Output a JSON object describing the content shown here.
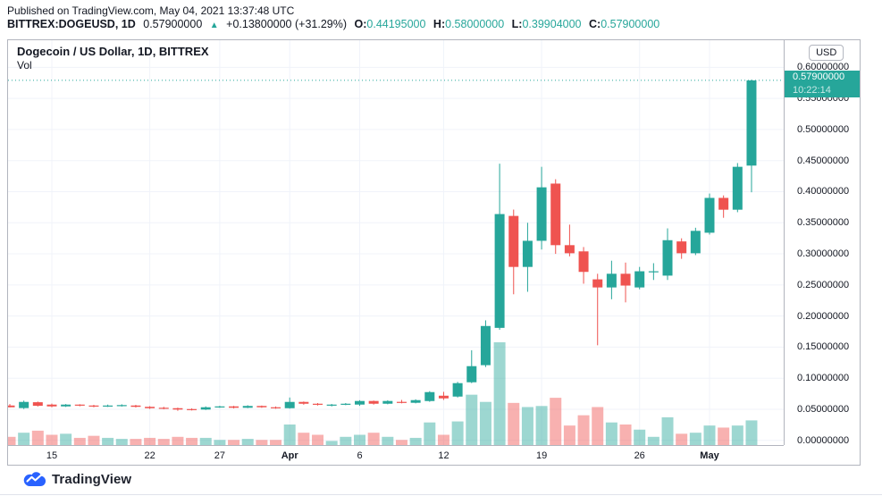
{
  "header": {
    "published_line": "Published on TradingView.com, May 04, 2021 13:37:48 UTC",
    "symbol": "BITTREX:DOGEUSD, 1D",
    "last_price": "0.57900000",
    "change_icon": "▲",
    "change": "+0.13800000 (+31.29%)",
    "ohlc": {
      "o_label": "O:",
      "o_value": "0.44195000",
      "h_label": "H:",
      "h_value": "0.58000000",
      "l_label": "L:",
      "l_value": "0.39904000",
      "c_label": "C:",
      "c_value": "0.57900000"
    }
  },
  "chart": {
    "legend_title": "Dogecoin / US Dollar, 1D, BITTREX",
    "legend_vol": "Vol",
    "currency_button": "USD",
    "price_badge": {
      "price": "0.57900000",
      "countdown": "10:22:14"
    },
    "price_axis_labels": [
      {
        "text": "0.60000000",
        "value": 0.6
      },
      {
        "text": "0.55000000",
        "value": 0.55
      },
      {
        "text": "0.50000000",
        "value": 0.5
      },
      {
        "text": "0.45000000",
        "value": 0.45
      },
      {
        "text": "0.40000000",
        "value": 0.4
      },
      {
        "text": "0.35000000",
        "value": 0.35
      },
      {
        "text": "0.30000000",
        "value": 0.3
      },
      {
        "text": "0.25000000",
        "value": 0.25
      },
      {
        "text": "0.20000000",
        "value": 0.2
      },
      {
        "text": "0.15000000",
        "value": 0.15
      },
      {
        "text": "0.10000000",
        "value": 0.1
      },
      {
        "text": "0.05000000",
        "value": 0.05
      },
      {
        "text": "0.00000000",
        "value": 0.0
      }
    ]
  },
  "footer": {
    "logo_text": "TradingView"
  },
  "colors": {
    "up": "#26a69a",
    "down": "#ef5350",
    "volume_up": "rgba(38,166,154,0.45)",
    "volume_down": "rgba(239,83,80,0.45)",
    "accent": "#26a69a",
    "grid": "#f0f3fa",
    "logo_blue": "#2962ff"
  },
  "chart_data": {
    "type": "candlestick+volume",
    "symbol": "BITTREX:DOGEUSD",
    "interval": "1D",
    "title": "Dogecoin / US Dollar, 1D, BITTREX",
    "ylim": [
      0,
      0.62
    ],
    "last_price": 0.579,
    "countdown": "10:22:14",
    "legend_position": "top-left",
    "grid": true,
    "volume_note": "volume values v are relative heights, 100 = tallest bar (Apr 16)",
    "x_ticks": [
      {
        "t": "15",
        "i": 3,
        "bold": false
      },
      {
        "t": "22",
        "i": 10,
        "bold": false
      },
      {
        "t": "27",
        "i": 15,
        "bold": false
      },
      {
        "t": "Apr",
        "i": 20,
        "bold": true
      },
      {
        "t": "6",
        "i": 25,
        "bold": false
      },
      {
        "t": "12",
        "i": 31,
        "bold": false
      },
      {
        "t": "19",
        "i": 38,
        "bold": false
      },
      {
        "t": "26",
        "i": 45,
        "bold": false
      },
      {
        "t": "May",
        "i": 50,
        "bold": true
      }
    ],
    "candles": [
      {
        "d": "Mar 12",
        "o": 0.0561,
        "h": 0.0585,
        "l": 0.0532,
        "c": 0.0533,
        "v": 8
      },
      {
        "d": "Mar 13",
        "o": 0.052,
        "h": 0.064,
        "l": 0.0505,
        "c": 0.0619,
        "v": 12
      },
      {
        "d": "Mar 14",
        "o": 0.0614,
        "h": 0.0625,
        "l": 0.0545,
        "c": 0.0557,
        "v": 14
      },
      {
        "d": "Mar 15",
        "o": 0.0576,
        "h": 0.0592,
        "l": 0.0532,
        "c": 0.0547,
        "v": 10
      },
      {
        "d": "Mar 16",
        "o": 0.0547,
        "h": 0.0585,
        "l": 0.0538,
        "c": 0.0576,
        "v": 11
      },
      {
        "d": "Mar 17",
        "o": 0.0576,
        "h": 0.0582,
        "l": 0.0548,
        "c": 0.0561,
        "v": 7
      },
      {
        "d": "Mar 18",
        "o": 0.0561,
        "h": 0.0572,
        "l": 0.0532,
        "c": 0.0547,
        "v": 9
      },
      {
        "d": "Mar 19",
        "o": 0.0547,
        "h": 0.0576,
        "l": 0.0538,
        "c": 0.0561,
        "v": 7
      },
      {
        "d": "Mar 20",
        "o": 0.0554,
        "h": 0.0581,
        "l": 0.0544,
        "c": 0.0568,
        "v": 6
      },
      {
        "d": "Mar 21",
        "o": 0.0561,
        "h": 0.0572,
        "l": 0.0529,
        "c": 0.054,
        "v": 6
      },
      {
        "d": "Mar 22",
        "o": 0.054,
        "h": 0.0551,
        "l": 0.0506,
        "c": 0.0518,
        "v": 7
      },
      {
        "d": "Mar 23",
        "o": 0.0525,
        "h": 0.0541,
        "l": 0.05,
        "c": 0.0511,
        "v": 6
      },
      {
        "d": "Mar 24",
        "o": 0.0518,
        "h": 0.0527,
        "l": 0.0476,
        "c": 0.0496,
        "v": 8
      },
      {
        "d": "Mar 25",
        "o": 0.0504,
        "h": 0.0516,
        "l": 0.0481,
        "c": 0.0496,
        "v": 7
      },
      {
        "d": "Mar 26",
        "o": 0.0496,
        "h": 0.0547,
        "l": 0.0489,
        "c": 0.0533,
        "v": 7
      },
      {
        "d": "Mar 27",
        "o": 0.0533,
        "h": 0.0556,
        "l": 0.0524,
        "c": 0.0547,
        "v": 5
      },
      {
        "d": "Mar 28",
        "o": 0.0547,
        "h": 0.0556,
        "l": 0.0514,
        "c": 0.0525,
        "v": 5
      },
      {
        "d": "Mar 29",
        "o": 0.0525,
        "h": 0.0566,
        "l": 0.0519,
        "c": 0.0554,
        "v": 6
      },
      {
        "d": "Mar 30",
        "o": 0.0554,
        "h": 0.0561,
        "l": 0.0524,
        "c": 0.0533,
        "v": 5
      },
      {
        "d": "Mar 31",
        "o": 0.0533,
        "h": 0.0546,
        "l": 0.0509,
        "c": 0.0518,
        "v": 5
      },
      {
        "d": "Apr 1",
        "o": 0.0518,
        "h": 0.069,
        "l": 0.0511,
        "c": 0.0619,
        "v": 20
      },
      {
        "d": "Apr 2",
        "o": 0.0619,
        "h": 0.0626,
        "l": 0.0574,
        "c": 0.059,
        "v": 12
      },
      {
        "d": "Apr 3",
        "o": 0.059,
        "h": 0.0601,
        "l": 0.0561,
        "c": 0.0576,
        "v": 10
      },
      {
        "d": "Apr 4",
        "o": 0.0562,
        "h": 0.0586,
        "l": 0.0546,
        "c": 0.0576,
        "v": 4
      },
      {
        "d": "Apr 5",
        "o": 0.0576,
        "h": 0.0601,
        "l": 0.0566,
        "c": 0.059,
        "v": 8
      },
      {
        "d": "Apr 6",
        "o": 0.0576,
        "h": 0.0646,
        "l": 0.0556,
        "c": 0.0634,
        "v": 10
      },
      {
        "d": "Apr 7",
        "o": 0.0634,
        "h": 0.0641,
        "l": 0.0576,
        "c": 0.059,
        "v": 12
      },
      {
        "d": "Apr 8",
        "o": 0.059,
        "h": 0.0646,
        "l": 0.0581,
        "c": 0.0634,
        "v": 8
      },
      {
        "d": "Apr 9",
        "o": 0.062,
        "h": 0.0651,
        "l": 0.0596,
        "c": 0.0605,
        "v": 5
      },
      {
        "d": "Apr 10",
        "o": 0.0605,
        "h": 0.0661,
        "l": 0.0596,
        "c": 0.0648,
        "v": 7
      },
      {
        "d": "Apr 11",
        "o": 0.0633,
        "h": 0.0792,
        "l": 0.0621,
        "c": 0.0777,
        "v": 22
      },
      {
        "d": "Apr 12",
        "o": 0.0719,
        "h": 0.0781,
        "l": 0.0651,
        "c": 0.0676,
        "v": 10
      },
      {
        "d": "Apr 13",
        "o": 0.0705,
        "h": 0.0941,
        "l": 0.069,
        "c": 0.0921,
        "v": 23
      },
      {
        "d": "Apr 14",
        "o": 0.0935,
        "h": 0.145,
        "l": 0.0921,
        "c": 0.1194,
        "v": 49
      },
      {
        "d": "Apr 15",
        "o": 0.121,
        "h": 0.1931,
        "l": 0.118,
        "c": 0.184,
        "v": 42
      },
      {
        "d": "Apr 16",
        "o": 0.181,
        "h": 0.445,
        "l": 0.178,
        "c": 0.364,
        "v": 100
      },
      {
        "d": "Apr 17",
        "o": 0.361,
        "h": 0.3712,
        "l": 0.235,
        "c": 0.279,
        "v": 41
      },
      {
        "d": "Apr 18",
        "o": 0.279,
        "h": 0.35,
        "l": 0.239,
        "c": 0.321,
        "v": 37
      },
      {
        "d": "Apr 19",
        "o": 0.321,
        "h": 0.44,
        "l": 0.307,
        "c": 0.407,
        "v": 38
      },
      {
        "d": "Apr 20",
        "o": 0.413,
        "h": 0.42,
        "l": 0.3,
        "c": 0.314,
        "v": 46
      },
      {
        "d": "Apr 21",
        "o": 0.314,
        "h": 0.347,
        "l": 0.296,
        "c": 0.301,
        "v": 19
      },
      {
        "d": "Apr 22",
        "o": 0.304,
        "h": 0.311,
        "l": 0.252,
        "c": 0.271,
        "v": 29
      },
      {
        "d": "Apr 23",
        "o": 0.259,
        "h": 0.268,
        "l": 0.153,
        "c": 0.246,
        "v": 37
      },
      {
        "d": "Apr 24",
        "o": 0.246,
        "h": 0.289,
        "l": 0.227,
        "c": 0.268,
        "v": 22
      },
      {
        "d": "Apr 25",
        "o": 0.268,
        "h": 0.286,
        "l": 0.222,
        "c": 0.249,
        "v": 20
      },
      {
        "d": "Apr 26",
        "o": 0.246,
        "h": 0.279,
        "l": 0.243,
        "c": 0.272,
        "v": 15
      },
      {
        "d": "Apr 27",
        "o": 0.271,
        "h": 0.285,
        "l": 0.258,
        "c": 0.272,
        "v": 8
      },
      {
        "d": "Apr 28",
        "o": 0.265,
        "h": 0.341,
        "l": 0.258,
        "c": 0.322,
        "v": 27
      },
      {
        "d": "Apr 29",
        "o": 0.32,
        "h": 0.325,
        "l": 0.292,
        "c": 0.301,
        "v": 11
      },
      {
        "d": "Apr 30",
        "o": 0.301,
        "h": 0.342,
        "l": 0.298,
        "c": 0.337,
        "v": 12
      },
      {
        "d": "May 1",
        "o": 0.334,
        "h": 0.397,
        "l": 0.331,
        "c": 0.39,
        "v": 19
      },
      {
        "d": "May 2",
        "o": 0.39,
        "h": 0.394,
        "l": 0.358,
        "c": 0.371,
        "v": 17
      },
      {
        "d": "May 3",
        "o": 0.371,
        "h": 0.446,
        "l": 0.367,
        "c": 0.44,
        "v": 19
      },
      {
        "d": "May 4",
        "o": 0.44195,
        "h": 0.58,
        "l": 0.39904,
        "c": 0.579,
        "v": 24
      }
    ]
  }
}
